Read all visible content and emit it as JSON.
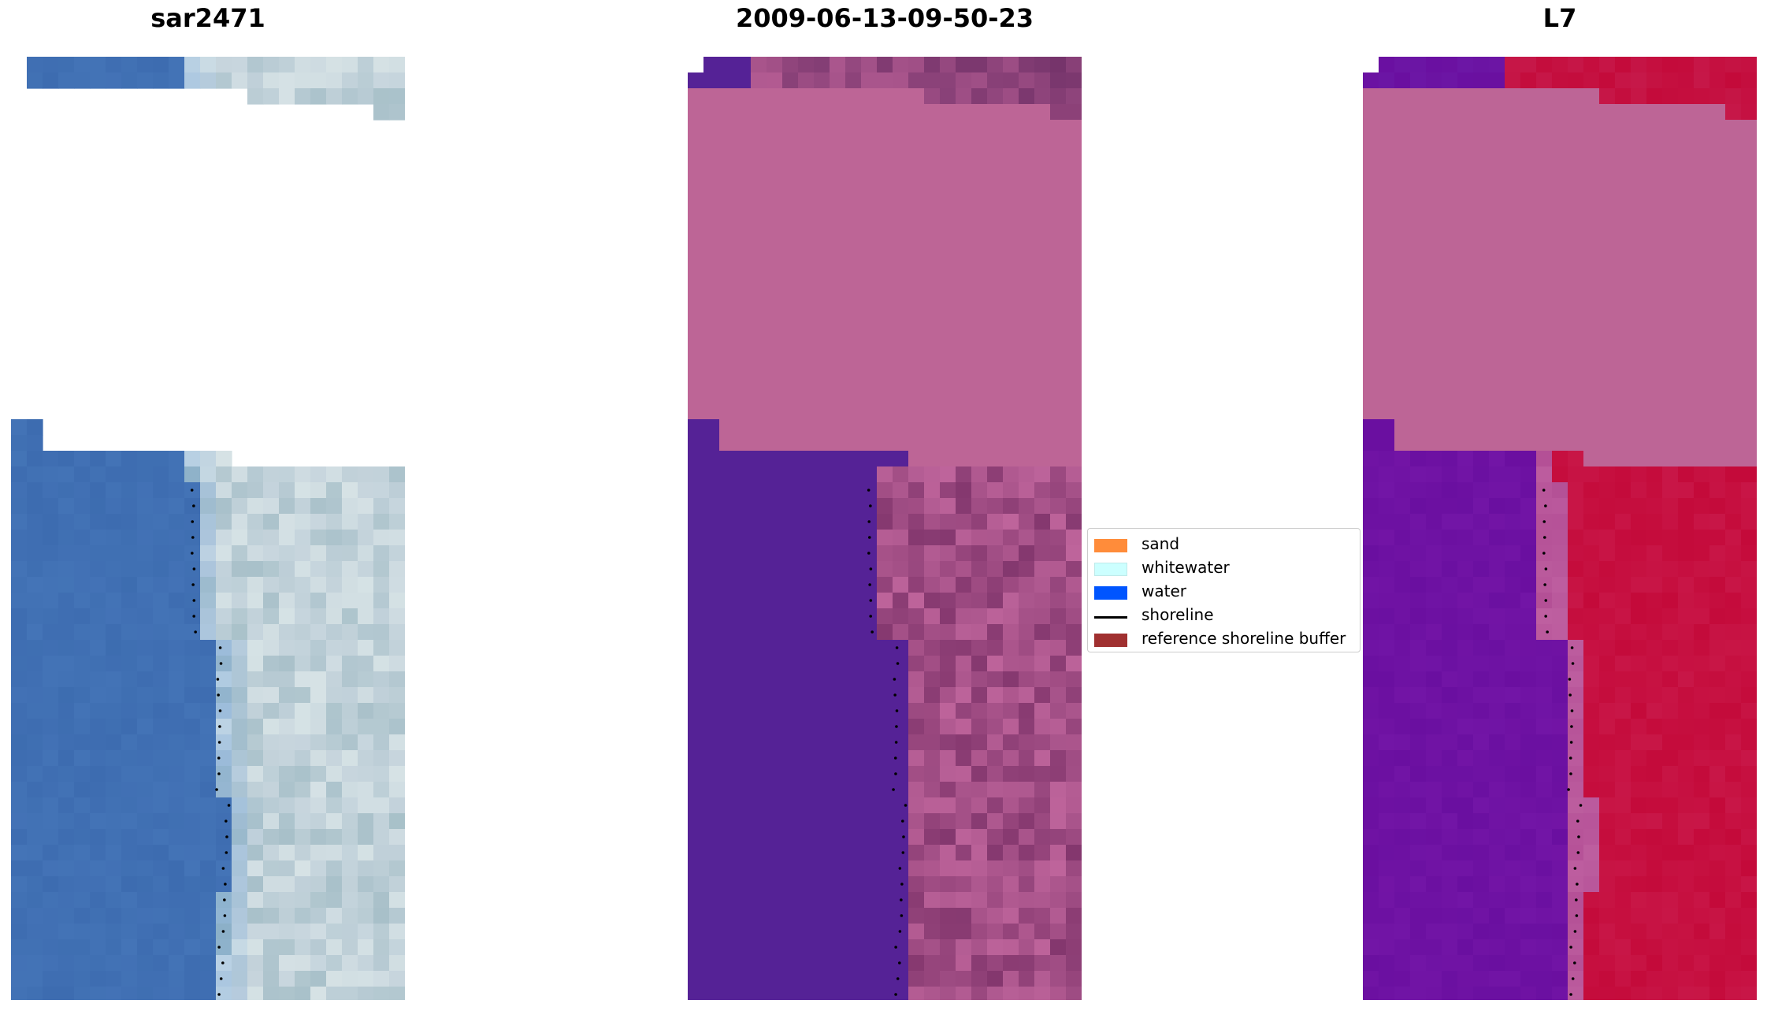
{
  "panels": [
    {
      "title": "sar2471",
      "kind": "rgb"
    },
    {
      "title": "2009-06-13-09-50-23",
      "kind": "classified"
    },
    {
      "title": "L7",
      "kind": "index"
    }
  ],
  "legend": {
    "items": [
      {
        "label": "sand",
        "color": "#ff8c3a",
        "kind": "patch"
      },
      {
        "label": "whitewater",
        "color": "#ccffff",
        "kind": "patch"
      },
      {
        "label": "water",
        "color": "#0055ff",
        "kind": "patch"
      },
      {
        "label": "shoreline",
        "color": "#000000",
        "kind": "line"
      },
      {
        "label": "reference shoreline buffer",
        "color": "#a03030",
        "kind": "patch"
      }
    ]
  },
  "colors": {
    "cloud_mask": "#bd6596",
    "classified_water": "#552296",
    "index_low": "#6a0fa0",
    "index_high": "#c40a3a",
    "rgb_water": "#3d6cb0",
    "rgb_land": "#c8d6de"
  }
}
